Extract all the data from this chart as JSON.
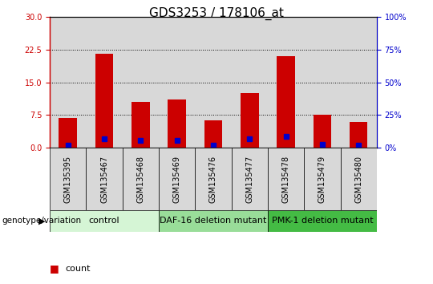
{
  "title": "GDS3253 / 178106_at",
  "samples": [
    "GSM135395",
    "GSM135467",
    "GSM135468",
    "GSM135469",
    "GSM135476",
    "GSM135477",
    "GSM135478",
    "GSM135479",
    "GSM135480"
  ],
  "counts": [
    6.8,
    21.5,
    10.5,
    11.0,
    6.2,
    12.5,
    21.0,
    7.5,
    6.0
  ],
  "percentiles": [
    2.0,
    6.5,
    5.5,
    5.5,
    2.0,
    6.5,
    8.5,
    2.5,
    2.0
  ],
  "ylim_left": [
    0,
    30
  ],
  "ylim_right": [
    0,
    100
  ],
  "yticks_left": [
    0,
    7.5,
    15,
    22.5,
    30
  ],
  "yticks_right": [
    0,
    25,
    50,
    75,
    100
  ],
  "groups": [
    {
      "label": "control",
      "start": 0,
      "end": 3,
      "color": "#d5f5d5"
    },
    {
      "label": "DAF-16 deletion mutant",
      "start": 3,
      "end": 6,
      "color": "#99dd99"
    },
    {
      "label": "PMK-1 deletion mutant",
      "start": 6,
      "end": 9,
      "color": "#44bb44"
    }
  ],
  "bar_color": "#cc0000",
  "dot_color": "#0000cc",
  "grid_color": "#000000",
  "sample_bg_color": "#d8d8d8",
  "left_axis_color": "#cc0000",
  "right_axis_color": "#0000cc",
  "title_fontsize": 11,
  "tick_fontsize": 7,
  "group_label_fontsize": 8,
  "legend_fontsize": 8
}
